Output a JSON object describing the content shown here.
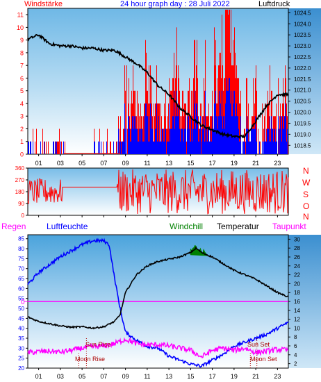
{
  "header": {
    "left_label": "Windstärke",
    "center_label": "24 hour graph day : 28 Juli 2022",
    "right_label": "Luftdruck"
  },
  "panel2": {
    "compass_labels": [
      "N",
      "W",
      "S",
      "O",
      "N"
    ]
  },
  "panel3": {
    "labels": {
      "regen": "Regen",
      "luftfeuchte": "Luftfeuchte",
      "windchill": "Windchill",
      "temperatur": "Temperatur",
      "taupunkt": "Taupunkt"
    },
    "annotations": {
      "sun_rise": "Sun Rise",
      "sun_set": "Sun Set",
      "moon_rise": "Moon Rise",
      "moon_set": "Moon Set",
      "rain_zero": "0"
    }
  },
  "colors": {
    "wind_gust": "#ff0000",
    "wind_avg": "#0000ff",
    "pressure": "#000000",
    "humidity": "#0000ff",
    "temperature": "#000000",
    "dewpoint": "#ff00ff",
    "windchill": "#008000",
    "rain": "#ff00ff",
    "left_axis": "#ff0000",
    "right_axis": "#000000"
  },
  "chart_data": [
    {
      "type": "bar",
      "title": "24 hour graph day : 28 Juli 2022",
      "xlabel": "",
      "x_ticks": [
        "01",
        "03",
        "05",
        "07",
        "09",
        "11",
        "13",
        "15",
        "17",
        "19",
        "21",
        "23"
      ],
      "y_left_label": "Windstärke",
      "y_left_ticks": [
        0,
        1,
        2,
        3,
        4,
        5,
        6,
        7,
        8,
        9,
        10,
        11
      ],
      "ylim_left": [
        0,
        11.5
      ],
      "y_right_label": "Luftdruck",
      "y_right_ticks": [
        1018.5,
        1019,
        1019.5,
        1020,
        1020.5,
        1021,
        1021.5,
        1022,
        1022.5,
        1023,
        1023.5,
        1024,
        1024.5
      ],
      "ylim_right": [
        1018.1,
        1024.7
      ],
      "series": [
        {
          "name": "Windstärke",
          "type": "bar"
        },
        {
          "name": "Luftdruck",
          "type": "line",
          "x_hours": [
            0,
            1,
            2,
            3,
            4,
            5,
            6,
            7,
            8,
            9,
            10,
            11,
            12,
            13,
            14,
            15,
            16,
            17,
            18,
            19,
            20,
            21,
            22,
            23,
            24
          ],
          "values": [
            1023.3,
            1023.5,
            1023.1,
            1023.0,
            1023.0,
            1022.9,
            1022.9,
            1022.8,
            1022.8,
            1022.5,
            1022.2,
            1021.8,
            1021.2,
            1020.8,
            1020.2,
            1019.8,
            1019.4,
            1019.2,
            1019.0,
            1018.9,
            1018.9,
            1019.6,
            1020.3,
            1020.8,
            1020.8
          ]
        }
      ],
      "wind_gust_levels": [
        0,
        1,
        1,
        2,
        1,
        0,
        1,
        1,
        0,
        0,
        0,
        0,
        0,
        0,
        0,
        0,
        1,
        2,
        2,
        3,
        4,
        3,
        5,
        2,
        3,
        4,
        3,
        6,
        4,
        3,
        5,
        7,
        3,
        4,
        2,
        5,
        6,
        11,
        8,
        4,
        2,
        3,
        5,
        1,
        2,
        3,
        2,
        4,
        3
      ]
    },
    {
      "type": "line",
      "title": "",
      "y_left_ticks": [
        0,
        90,
        180,
        270,
        360
      ],
      "ylim": [
        0,
        360
      ],
      "x_ticks": [
        "01",
        "03",
        "05",
        "07",
        "09",
        "11",
        "13",
        "15",
        "17",
        "19",
        "21",
        "23"
      ],
      "series": [
        {
          "name": "",
          "direction_hint": "noisy wind direction"
        }
      ]
    },
    {
      "type": "line",
      "title": "",
      "x_ticks": [
        "01",
        "03",
        "05",
        "07",
        "09",
        "11",
        "13",
        "15",
        "17",
        "19",
        "21",
        "23"
      ],
      "y_left_ticks": [
        20,
        25,
        30,
        35,
        40,
        45,
        50,
        55,
        60,
        65,
        70,
        75,
        80,
        85
      ],
      "ylim_left": [
        20,
        87
      ],
      "y_right_ticks": [
        2,
        4,
        6,
        8,
        10,
        12,
        14,
        16,
        18,
        20,
        22,
        24,
        26,
        28,
        30
      ],
      "ylim_right": [
        1,
        31
      ],
      "series": [
        {
          "name": "Luftfeuchte",
          "axis": "left",
          "x_hours": [
            0,
            1,
            2,
            3,
            4,
            5,
            6,
            7,
            7.5,
            8,
            8.5,
            9,
            10,
            11,
            12,
            13,
            14,
            15,
            16,
            17,
            18,
            19,
            20,
            21,
            22,
            23,
            24
          ],
          "values": [
            62,
            68,
            72,
            76,
            79,
            82,
            84,
            84,
            82,
            65,
            50,
            38,
            34,
            31,
            30,
            26,
            24,
            22,
            21,
            24,
            27,
            31,
            33,
            35,
            37,
            40,
            43
          ]
        },
        {
          "name": "Temperatur",
          "axis": "right",
          "x_hours": [
            0,
            1,
            2,
            3,
            4,
            5,
            6,
            7,
            8,
            8.5,
            9,
            10,
            11,
            12,
            13,
            14,
            15,
            15.5,
            16,
            17,
            18,
            19,
            20,
            21,
            22,
            23,
            24
          ],
          "values": [
            12.5,
            11.5,
            11,
            10.5,
            10.2,
            10.3,
            10.0,
            10.3,
            11.5,
            13,
            18,
            22,
            24,
            25,
            25.5,
            26,
            27,
            28,
            27,
            26,
            24.5,
            23,
            22,
            21,
            19.5,
            18,
            17
          ]
        },
        {
          "name": "Taupunkt",
          "axis": "right",
          "x_hours": [
            0,
            1,
            2,
            3,
            4,
            5,
            6,
            7,
            8,
            9,
            10,
            11,
            12,
            13,
            14,
            15,
            16,
            17,
            18,
            19,
            20,
            21,
            22,
            23,
            24
          ],
          "values": [
            4.5,
            4.7,
            4.8,
            4.6,
            5.0,
            5.5,
            5.8,
            6.0,
            6.5,
            7.5,
            6.5,
            6.2,
            6.3,
            6.0,
            5.5,
            5.0,
            3.5,
            5.0,
            5.5,
            5.0,
            5.5,
            4.5,
            4.8,
            5.2,
            5.0
          ]
        },
        {
          "name": "Windchill",
          "axis": "right",
          "note": "green fill between 15h and 16.5h"
        }
      ],
      "rain_line_value": 0
    }
  ]
}
